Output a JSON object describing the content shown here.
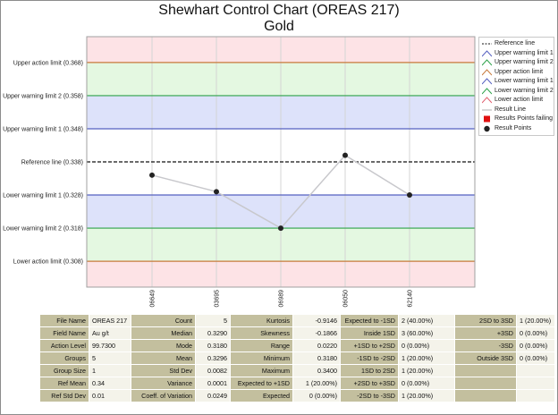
{
  "chart_data": {
    "type": "line",
    "title": "Shewhart Control Chart (OREAS 217)",
    "subtitle": "Gold",
    "x": [
      "06649",
      "03695",
      "06989",
      "06050",
      "62140"
    ],
    "values": [
      0.334,
      0.329,
      0.318,
      0.34,
      0.328
    ],
    "ylim": [
      0.3002,
      0.3758
    ],
    "reference_line": {
      "label": "Reference line (0.338)",
      "value": 0.338
    },
    "limit_lines": [
      {
        "key": "ual",
        "label": "Upper action limit (0.368)",
        "value": 0.368,
        "color": "#c87a3c"
      },
      {
        "key": "uwl2",
        "label": "Upper warning limit 2 (0.358)",
        "value": 0.358,
        "color": "#2ea24a"
      },
      {
        "key": "uwl1",
        "label": "Upper warning limit 1 (0.348)",
        "value": 0.348,
        "color": "#5560c0"
      },
      {
        "key": "lwl1",
        "label": "Lower warning limit 1 (0.328)",
        "value": 0.328,
        "color": "#5560c0"
      },
      {
        "key": "lwl2",
        "label": "Lower warning limit 2 (0.318)",
        "value": 0.318,
        "color": "#2ea24a"
      },
      {
        "key": "lal",
        "label": "Lower action limit (0.308)",
        "value": 0.308,
        "color": "#c87a3c"
      }
    ],
    "bands": [
      {
        "from": 0.368,
        "to": 0.3758,
        "color": "#fde3e6"
      },
      {
        "from": 0.358,
        "to": 0.368,
        "color": "#e4f8e1"
      },
      {
        "from": 0.348,
        "to": 0.358,
        "color": "#dde2fa"
      },
      {
        "from": 0.338,
        "to": 0.348,
        "color": "#ffffff"
      },
      {
        "from": 0.328,
        "to": 0.338,
        "color": "#ffffff"
      },
      {
        "from": 0.318,
        "to": 0.328,
        "color": "#dde2fa"
      },
      {
        "from": 0.308,
        "to": 0.318,
        "color": "#e4f8e1"
      },
      {
        "from": 0.3002,
        "to": 0.308,
        "color": "#fde3e6"
      }
    ],
    "series_color": "#c8c8cc",
    "point_color": "#222222",
    "legend": {
      "position": "top-right",
      "items": [
        {
          "label": "Reference line",
          "symbol": "dash",
          "color": "#111111"
        },
        {
          "label": "Upper warning limit 1",
          "symbol": "tri",
          "color": "#5560c0"
        },
        {
          "label": "Upper warning limit 2",
          "symbol": "tri",
          "color": "#2ea24a"
        },
        {
          "label": "Upper action limit",
          "symbol": "tri",
          "color": "#c87a3c"
        },
        {
          "label": "Lower warning limit 1",
          "symbol": "tri",
          "color": "#5560c0"
        },
        {
          "label": "Lower warning limit 2",
          "symbol": "tri",
          "color": "#2ea24a"
        },
        {
          "label": "Lower action limit",
          "symbol": "tri",
          "color": "#e06070"
        },
        {
          "label": "Result Line",
          "symbol": "line",
          "color": "#b0b0b0"
        },
        {
          "label": "Results Points failing",
          "symbol": "square",
          "color": "#e01010"
        },
        {
          "label": "Result Points",
          "symbol": "dot",
          "color": "#222222"
        }
      ]
    }
  },
  "stats_table": [
    [
      "File Name",
      "OREAS 217",
      "Count",
      "5",
      "Kurtosis",
      "-0.9146",
      "Expected to -1SD",
      "2 (40.00%)",
      "2SD to 3SD",
      "1 (20.00%)"
    ],
    [
      "Field Name",
      "Au g/t",
      "Median",
      "0.3290",
      "Skewness",
      "-0.1866",
      "Inside 1SD",
      "3 (60.00%)",
      "+3SD",
      "0 (0.00%)"
    ],
    [
      "Action Level",
      "99.7300",
      "Mode",
      "0.3180",
      "Range",
      "0.0220",
      "+1SD to +2SD",
      "0 (0.00%)",
      "-3SD",
      "0 (0.00%)"
    ],
    [
      "Groups",
      "5",
      "Mean",
      "0.3296",
      "Minimum",
      "0.3180",
      "-1SD to -2SD",
      "1 (20.00%)",
      "Outside 3SD",
      "0 (0.00%)"
    ],
    [
      "Group Size",
      "1",
      "Std Dev",
      "0.0082",
      "Maximum",
      "0.3400",
      "1SD to 2SD",
      "1 (20.00%)",
      "",
      ""
    ],
    [
      "Ref Mean",
      "0.34",
      "Variance",
      "0.0001",
      "Expected to +1SD",
      "1 (20.00%)",
      "+2SD to +3SD",
      "0 (0.00%)",
      "",
      ""
    ],
    [
      "Ref Std Dev",
      "0.01",
      "Coeff. of Variation",
      "0.0249",
      "Expected",
      "0 (0.00%)",
      "-2SD to -3SD",
      "1 (20.00%)",
      "",
      ""
    ]
  ]
}
